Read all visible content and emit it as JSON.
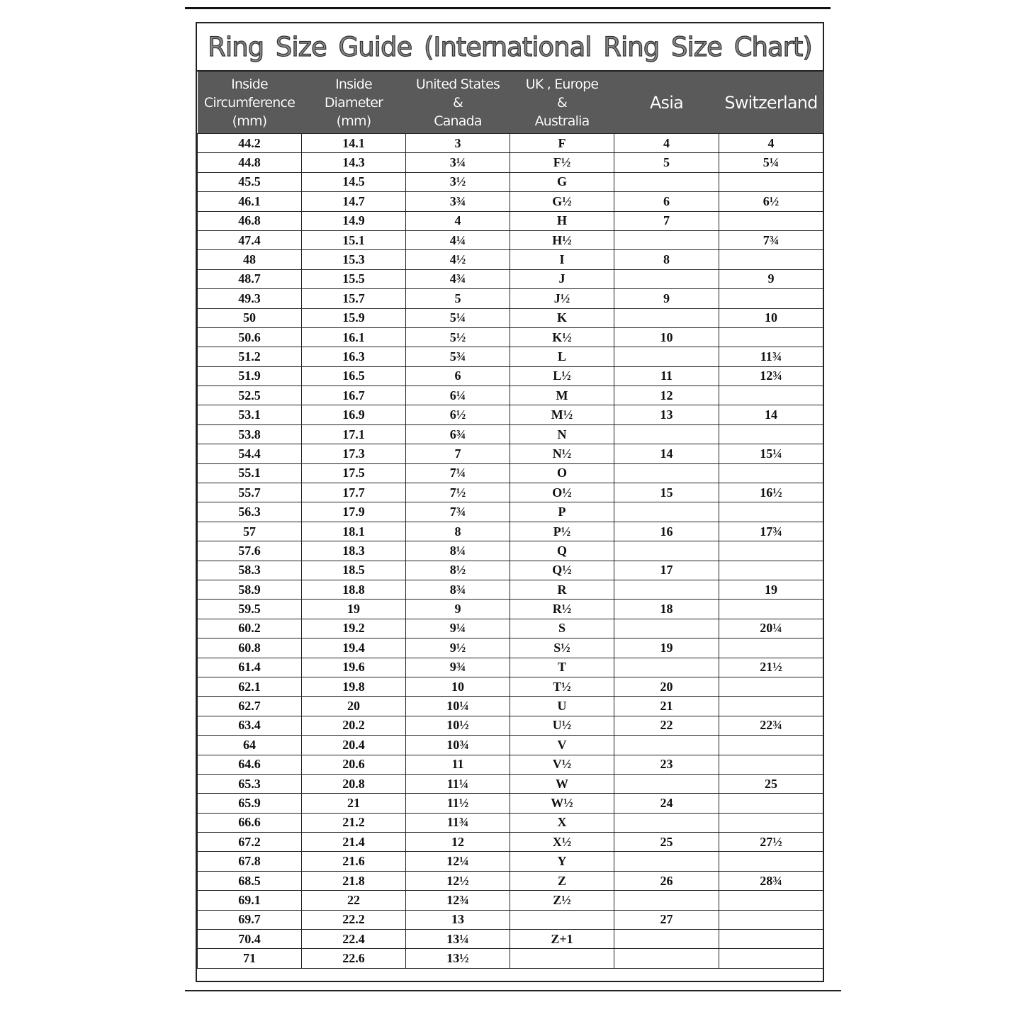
{
  "title": "Ring  Size  Guide (International Ring Size Chart)",
  "headers": [
    [
      "Inside",
      "Circumference",
      "(mm)"
    ],
    [
      "Inside",
      "Diameter",
      "(mm)"
    ],
    [
      "United States",
      "&",
      "Canada"
    ],
    [
      "UK , Europe",
      "&",
      "Australia"
    ],
    [
      "Asia"
    ],
    [
      "Switzerland"
    ]
  ],
  "rows": [
    [
      "44.2",
      "14.1",
      "3",
      "F",
      "4",
      "4"
    ],
    [
      "44.8",
      "14.3",
      "3¼",
      "F½",
      "5",
      "5¼"
    ],
    [
      "45.5",
      "14.5",
      "3½",
      "G",
      "",
      ""
    ],
    [
      "46.1",
      "14.7",
      "3¾",
      "G½",
      "6",
      "6½"
    ],
    [
      "46.8",
      "14.9",
      "4",
      "H",
      "7",
      ""
    ],
    [
      "47.4",
      "15.1",
      "4¼",
      "H½",
      "",
      "7¾"
    ],
    [
      "48",
      "15.3",
      "4½",
      "I",
      "8",
      ""
    ],
    [
      "48.7",
      "15.5",
      "4¾",
      "J",
      "",
      "9"
    ],
    [
      "49.3",
      "15.7",
      "5",
      "J½",
      "9",
      ""
    ],
    [
      "50",
      "15.9",
      "5¼",
      "K",
      "",
      "10"
    ],
    [
      "50.6",
      "16.1",
      "5½",
      "K½",
      "10",
      ""
    ],
    [
      "51.2",
      "16.3",
      "5¾",
      "L",
      "",
      "11¾"
    ],
    [
      "51.9",
      "16.5",
      "6",
      "L½",
      "11",
      "12¾"
    ],
    [
      "52.5",
      "16.7",
      "6¼",
      "M",
      "12",
      ""
    ],
    [
      "53.1",
      "16.9",
      "6½",
      "M½",
      "13",
      "14"
    ],
    [
      "53.8",
      "17.1",
      "6¾",
      "N",
      "",
      ""
    ],
    [
      "54.4",
      "17.3",
      "7",
      "N½",
      "14",
      "15¼"
    ],
    [
      "55.1",
      "17.5",
      "7¼",
      "O",
      "",
      ""
    ],
    [
      "55.7",
      "17.7",
      "7½",
      "O½",
      "15",
      "16½"
    ],
    [
      "56.3",
      "17.9",
      "7¾",
      "P",
      "",
      ""
    ],
    [
      "57",
      "18.1",
      "8",
      "P½",
      "16",
      "17¾"
    ],
    [
      "57.6",
      "18.3",
      "8¼",
      "Q",
      "",
      ""
    ],
    [
      "58.3",
      "18.5",
      "8½",
      "Q½",
      "17",
      ""
    ],
    [
      "58.9",
      "18.8",
      "8¾",
      "R",
      "",
      "19"
    ],
    [
      "59.5",
      "19",
      "9",
      "R½",
      "18",
      ""
    ],
    [
      "60.2",
      "19.2",
      "9¼",
      "S",
      "",
      "20¼"
    ],
    [
      "60.8",
      "19.4",
      "9½",
      "S½",
      "19",
      ""
    ],
    [
      "61.4",
      "19.6",
      "9¾",
      "T",
      "",
      "21½"
    ],
    [
      "62.1",
      "19.8",
      "10",
      "T½",
      "20",
      ""
    ],
    [
      "62.7",
      "20",
      "10¼",
      "U",
      "21",
      ""
    ],
    [
      "63.4",
      "20.2",
      "10½",
      "U½",
      "22",
      "22¾"
    ],
    [
      "64",
      "20.4",
      "10¾",
      "V",
      "",
      ""
    ],
    [
      "64.6",
      "20.6",
      "11",
      "V½",
      "23",
      ""
    ],
    [
      "65.3",
      "20.8",
      "11¼",
      "W",
      "",
      "25"
    ],
    [
      "65.9",
      "21",
      "11½",
      "W½",
      "24",
      ""
    ],
    [
      "66.6",
      "21.2",
      "11¾",
      "X",
      "",
      ""
    ],
    [
      "67.2",
      "21.4",
      "12",
      "X½",
      "25",
      "27½"
    ],
    [
      "67.8",
      "21.6",
      "12¼",
      "Y",
      "",
      ""
    ],
    [
      "68.5",
      "21.8",
      "12½",
      "Z",
      "26",
      "28¾"
    ],
    [
      "69.1",
      "22",
      "12¾",
      "Z½",
      "",
      ""
    ],
    [
      "69.7",
      "22.2",
      "13",
      "",
      "27",
      ""
    ],
    [
      "70.4",
      "22.4",
      "13¼",
      "Z+1",
      "",
      ""
    ],
    [
      "71",
      "22.6",
      "13½",
      "",
      "",
      ""
    ]
  ]
}
